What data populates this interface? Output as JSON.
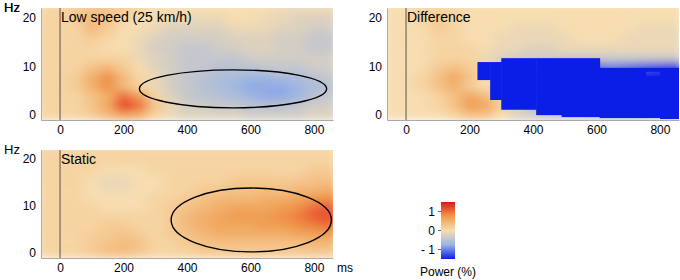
{
  "chart_data": [
    {
      "type": "heatmap",
      "title": "Low speed (25 km/h)",
      "ylabel": "Hz",
      "x": [
        -50,
        0,
        50,
        100,
        150,
        200,
        250,
        300,
        350,
        400,
        450,
        500,
        550,
        600,
        650,
        700,
        750,
        800,
        850
      ],
      "y": [
        1,
        3,
        5,
        7,
        9,
        11,
        13,
        15,
        17,
        19,
        21,
        23
      ],
      "xlim": [
        -60,
        860
      ],
      "ylim": [
        0,
        23
      ],
      "xticks": [
        0,
        200,
        400,
        600,
        800
      ],
      "yticks": [
        0,
        10,
        20
      ],
      "onset": 0,
      "cells": [
        [
          0.1,
          0.1,
          0.1,
          0.2,
          0.4,
          0.6,
          0.5,
          0.1,
          -0.1,
          -0.2,
          -0.2,
          -0.2,
          -0.2,
          -0.3,
          -0.3,
          -0.3,
          -0.3,
          -0.2,
          -0.2
        ],
        [
          0.1,
          0.1,
          0.1,
          0.3,
          0.6,
          1.3,
          1.0,
          0.3,
          -0.1,
          -0.3,
          -0.3,
          -0.4,
          -0.4,
          -0.5,
          -0.5,
          -0.5,
          -0.4,
          -0.3,
          -0.3
        ],
        [
          0.1,
          0.1,
          0.1,
          0.3,
          0.5,
          1.0,
          0.7,
          0.1,
          -0.2,
          -0.4,
          -0.5,
          -0.5,
          -0.6,
          -0.7,
          -0.8,
          -0.8,
          -0.7,
          -0.5,
          -0.4
        ],
        [
          0.1,
          0.1,
          0.2,
          0.5,
          0.8,
          0.4,
          0.1,
          -0.1,
          -0.3,
          -0.4,
          -0.5,
          -0.6,
          -0.7,
          -0.8,
          -0.8,
          -0.8,
          -0.7,
          -0.6,
          -0.5
        ],
        [
          0.1,
          0.1,
          0.2,
          0.5,
          0.8,
          0.4,
          0.1,
          -0.1,
          -0.3,
          -0.4,
          -0.5,
          -0.6,
          -0.6,
          -0.7,
          -0.7,
          -0.6,
          -0.6,
          -0.5,
          -0.4
        ],
        [
          0.1,
          0.1,
          0.1,
          0.3,
          0.4,
          0.2,
          0,
          -0.2,
          -0.3,
          -0.4,
          -0.4,
          -0.5,
          -0.5,
          -0.5,
          -0.4,
          -0.4,
          -0.4,
          -0.3,
          -0.3
        ],
        [
          0.1,
          0.1,
          0.1,
          0.1,
          0.1,
          0.1,
          -0.1,
          -0.2,
          -0.3,
          -0.4,
          -0.4,
          -0.4,
          -0.4,
          -0.3,
          -0.3,
          -0.3,
          -0.3,
          -0.3,
          -0.3
        ],
        [
          0.1,
          0.1,
          0.1,
          0.1,
          0,
          0,
          -0.1,
          -0.3,
          -0.3,
          -0.4,
          -0.4,
          -0.3,
          -0.3,
          -0.2,
          -0.2,
          -0.3,
          -0.3,
          -0.4,
          -0.4
        ],
        [
          0.1,
          0.1,
          0.1,
          0.2,
          0.1,
          0,
          -0.1,
          -0.2,
          -0.3,
          -0.3,
          -0.3,
          -0.3,
          -0.2,
          -0.2,
          -0.2,
          -0.3,
          -0.3,
          -0.4,
          -0.4
        ],
        [
          0.1,
          0.1,
          0.1,
          0.4,
          0.2,
          0,
          0,
          -0.1,
          -0.2,
          -0.2,
          -0.2,
          -0.2,
          -0.1,
          -0.1,
          -0.1,
          -0.2,
          -0.2,
          -0.3,
          -0.3
        ],
        [
          0.1,
          0.1,
          0.2,
          0.4,
          0.3,
          0.1,
          0,
          0,
          -0.1,
          -0.1,
          -0.1,
          -0.1,
          0,
          0,
          -0.1,
          -0.1,
          -0.2,
          -0.2,
          -0.2
        ],
        [
          0.1,
          0.1,
          0.2,
          0.3,
          0.3,
          0.2,
          0.1,
          0,
          0,
          0,
          0,
          0,
          0,
          0,
          0,
          -0.1,
          -0.1,
          -0.1,
          -0.1
        ]
      ],
      "highlight": {
        "x": [
          250,
          840
        ],
        "y": [
          2.5,
          10.3
        ]
      }
    },
    {
      "type": "heatmap",
      "title": "Static",
      "ylabel": "Hz",
      "xlabel": "ms",
      "x": [
        -50,
        0,
        50,
        100,
        150,
        200,
        250,
        300,
        350,
        400,
        450,
        500,
        550,
        600,
        650,
        700,
        750,
        800,
        850
      ],
      "y": [
        1,
        3,
        5,
        7,
        9,
        11,
        13,
        15,
        17,
        19,
        21,
        23
      ],
      "xlim": [
        -60,
        860
      ],
      "ylim": [
        0,
        23
      ],
      "xticks": [
        0,
        200,
        400,
        600,
        800
      ],
      "yticks": [
        0,
        10,
        20
      ],
      "onset": 0,
      "cells": [
        [
          0.1,
          0.1,
          0.1,
          0.2,
          0.3,
          0.3,
          0.2,
          0.1,
          0.1,
          0.1,
          0.2,
          0.2,
          0.2,
          0.2,
          0.2,
          0.2,
          0.2,
          0.2,
          0.2
        ],
        [
          0.1,
          0.1,
          0.1,
          0.2,
          0.3,
          0.4,
          0.3,
          0.1,
          0.1,
          0.2,
          0.3,
          0.3,
          0.3,
          0.3,
          0.3,
          0.3,
          0.3,
          0.4,
          0.4
        ],
        [
          0.1,
          0.1,
          0.1,
          0.2,
          0.2,
          0.3,
          0.2,
          0.1,
          0.2,
          0.3,
          0.4,
          0.5,
          0.5,
          0.5,
          0.5,
          0.5,
          0.6,
          0.6,
          0.7
        ],
        [
          0.1,
          0.1,
          0.1,
          0.1,
          0.2,
          0.2,
          0.1,
          0.1,
          0.2,
          0.4,
          0.5,
          0.6,
          0.6,
          0.6,
          0.7,
          0.7,
          0.8,
          0.9,
          1.0
        ],
        [
          0.1,
          0.1,
          0.1,
          0.1,
          0.1,
          0.1,
          0.1,
          0.1,
          0.2,
          0.4,
          0.5,
          0.6,
          0.7,
          0.7,
          0.7,
          0.8,
          0.9,
          1.1,
          1.2
        ],
        [
          0.1,
          0.1,
          0.1,
          0.1,
          0,
          0,
          0,
          0.1,
          0.2,
          0.3,
          0.4,
          0.5,
          0.6,
          0.6,
          0.6,
          0.7,
          0.8,
          1.0,
          1.1
        ],
        [
          0.1,
          0.1,
          0.1,
          0,
          0,
          0,
          0,
          0.1,
          0.1,
          0.2,
          0.3,
          0.4,
          0.4,
          0.4,
          0.5,
          0.5,
          0.6,
          0.7,
          0.8
        ],
        [
          0.1,
          0.1,
          0.1,
          0,
          -0.1,
          -0.1,
          0,
          0,
          0.1,
          0.1,
          0.2,
          0.2,
          0.3,
          0.3,
          0.3,
          0.3,
          0.4,
          0.4,
          0.5
        ],
        [
          0.1,
          0.1,
          0.1,
          0,
          -0.1,
          -0.1,
          0,
          0,
          0.1,
          0.1,
          0.1,
          0.1,
          0.2,
          0.2,
          0.2,
          0.2,
          0.2,
          0.3,
          0.3
        ],
        [
          0.1,
          0.1,
          0.1,
          0.1,
          0,
          0,
          0,
          0.1,
          0.1,
          0.1,
          0.1,
          0.1,
          0.1,
          0.1,
          0.1,
          0.1,
          0.1,
          0.2,
          0.2
        ],
        [
          0.1,
          0.1,
          0.1,
          0.1,
          0.1,
          0.1,
          0.1,
          0.1,
          0.1,
          0.1,
          0.1,
          0.1,
          0.1,
          0.1,
          0.1,
          0.1,
          0.1,
          0.1,
          0.1
        ],
        [
          0.1,
          0.1,
          0.1,
          0.1,
          0.1,
          0.1,
          0.1,
          0.1,
          0.1,
          0.1,
          0.1,
          0.1,
          0.1,
          0.1,
          0.1,
          0.1,
          0.1,
          0.1,
          0.1
        ]
      ],
      "highlight": {
        "x": [
          350,
          855
        ],
        "y": [
          1.3,
          14.9
        ]
      }
    },
    {
      "type": "heatmap",
      "title": "Difference",
      "ylabel": "Hz",
      "x": [
        -50,
        0,
        50,
        100,
        150,
        200,
        250,
        300,
        350,
        400,
        450,
        500,
        550,
        600,
        650,
        700,
        750,
        800,
        850
      ],
      "y": [
        1,
        3,
        5,
        7,
        9,
        11,
        13,
        15,
        17,
        19,
        21,
        23
      ],
      "xlim": [
        -60,
        860
      ],
      "ylim": [
        0,
        23
      ],
      "xticks": [
        0,
        200,
        400,
        600,
        800
      ],
      "yticks": [
        0,
        10,
        20
      ],
      "onset": 0,
      "cells": [
        [
          0,
          0,
          0,
          0,
          0.1,
          0.3,
          0.3,
          0,
          -0.2,
          -0.3,
          -0.4,
          -0.4,
          -0.4,
          -0.5,
          -0.5,
          -0.5,
          -0.5,
          -0.4,
          -0.4
        ],
        [
          0,
          0,
          0,
          0.1,
          0.3,
          0.7,
          0.6,
          0.2,
          -0.2,
          -0.5,
          -0.6,
          -0.7,
          -0.7,
          -0.8,
          -0.8,
          -0.8,
          -0.7,
          -0.7,
          -0.7
        ],
        [
          0,
          0,
          0,
          0.1,
          0.3,
          0.6,
          0.4,
          0,
          -0.4,
          -0.7,
          -0.9,
          -1.0,
          -1.1,
          -1.2,
          -1.3,
          -1.3,
          -1.3,
          -1.1,
          -1.1
        ],
        [
          0,
          0,
          0.1,
          0.3,
          0.5,
          0.2,
          0,
          -0.2,
          -0.5,
          -0.8,
          -1.0,
          -1.2,
          -1.3,
          -1.4,
          -1.5,
          -1.5,
          -1.5,
          -1.5,
          -1.5
        ],
        [
          0,
          0,
          0.1,
          0.3,
          0.6,
          0.3,
          0,
          -0.2,
          -0.5,
          -0.8,
          -1.0,
          -1.2,
          -1.3,
          -1.4,
          -1.4,
          -1.4,
          -1.5,
          -1.6,
          -1.6
        ],
        [
          0,
          0,
          0,
          0.2,
          0.3,
          0.2,
          0,
          -0.3,
          -0.5,
          -0.7,
          -0.8,
          -1.0,
          -1.1,
          -1.1,
          -1.0,
          -1.1,
          -1.2,
          -1.3,
          -1.4
        ],
        [
          0,
          0,
          0,
          0.1,
          0.1,
          0.1,
          -0.1,
          -0.2,
          -0.3,
          -0.3,
          -0.3,
          -0.3,
          -0.3,
          -0.3,
          -0.3,
          -0.3,
          -0.3,
          -0.3,
          -0.3
        ],
        [
          0,
          0,
          0,
          0.1,
          0.1,
          0.1,
          0,
          -0.1,
          -0.1,
          -0.2,
          -0.2,
          -0.1,
          -0.1,
          -0.1,
          -0.1,
          -0.1,
          -0.1,
          -0.1,
          -0.1
        ],
        [
          0,
          0,
          0,
          0.1,
          0.1,
          0,
          0,
          -0.1,
          -0.1,
          -0.1,
          -0.1,
          -0.1,
          0,
          0,
          0,
          -0.1,
          -0.1,
          -0.1,
          -0.1
        ],
        [
          0,
          0,
          0,
          0.2,
          0.1,
          0,
          0,
          0,
          -0.1,
          -0.1,
          -0.1,
          0,
          0,
          0,
          0,
          0,
          -0.1,
          -0.1,
          -0.1
        ],
        [
          0,
          0,
          0.1,
          0.2,
          0.1,
          0,
          0,
          0,
          0,
          0,
          0,
          0,
          0,
          0,
          0,
          0,
          0,
          0,
          0
        ],
        [
          0,
          0,
          0.1,
          0.1,
          0.1,
          0,
          0,
          0,
          0,
          0,
          0,
          0,
          0,
          0,
          0,
          0,
          0,
          0,
          0
        ]
      ],
      "significant": [
        {
          "x": [
            225,
            265
          ],
          "y": [
            8.2,
            11.9
          ]
        },
        {
          "x": [
            265,
            300
          ],
          "y": [
            4.1,
            11.9
          ]
        },
        {
          "x": [
            300,
            410
          ],
          "y": [
            2.1,
            12.7
          ]
        },
        {
          "x": [
            410,
            490
          ],
          "y": [
            1.0,
            12.7
          ]
        },
        {
          "x": [
            490,
            610
          ],
          "y": [
            0.6,
            12.7
          ]
        },
        {
          "x": [
            610,
            755
          ],
          "y": [
            0.4,
            10.7
          ]
        },
        {
          "x": [
            755,
            800
          ],
          "y": [
            0.4,
            9.0
          ]
        },
        {
          "x": [
            755,
            800
          ],
          "y": [
            9.9,
            10.7
          ]
        },
        {
          "x": [
            800,
            860
          ],
          "y": [
            0.2,
            10.7
          ]
        }
      ]
    }
  ],
  "colorbar": {
    "title": "Power (%)",
    "range": [
      -1.5,
      1.5
    ],
    "ticks": [
      1,
      0,
      {
        "value": -1,
        "label": "- 1"
      }
    ],
    "colors": [
      "#0a1ee8",
      "#9ab4e4",
      "#f7ddb0",
      "#f09a4a",
      "#e3141c"
    ]
  }
}
